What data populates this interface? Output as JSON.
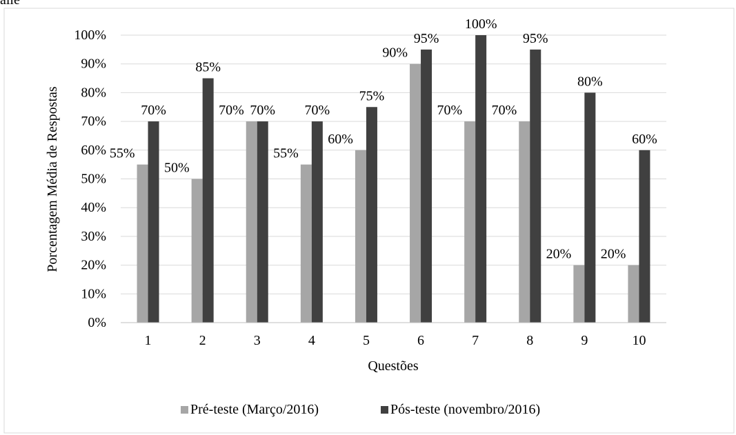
{
  "header_fragment": "aile",
  "chart_data": {
    "type": "bar",
    "title": "",
    "xlabel": "Questões",
    "ylabel": "Porcentagem Média de Respostas",
    "ylim": [
      0,
      100
    ],
    "yticks": [
      "0%",
      "10%",
      "20%",
      "30%",
      "40%",
      "50%",
      "60%",
      "70%",
      "80%",
      "90%",
      "100%"
    ],
    "categories": [
      "1",
      "2",
      "3",
      "4",
      "5",
      "6",
      "7",
      "8",
      "9",
      "10"
    ],
    "series": [
      {
        "name": "Pré-teste (Março/2016)",
        "color": "#a6a6a6",
        "values": [
          55,
          50,
          70,
          55,
          60,
          90,
          70,
          70,
          20,
          20
        ],
        "labels": [
          "55%",
          "50%",
          "70%",
          "55%",
          "60%",
          "90%",
          "70%",
          "70%",
          "20%",
          "20%"
        ]
      },
      {
        "name": "Pós-teste (novembro/2016)",
        "color": "#404040",
        "values": [
          70,
          85,
          70,
          70,
          75,
          95,
          100,
          95,
          80,
          60
        ],
        "labels": [
          "70%",
          "85%",
          "70%",
          "70%",
          "75%",
          "95%",
          "100%",
          "95%",
          "80%",
          "60%"
        ]
      }
    ],
    "grid": true,
    "legend_position": "bottom"
  }
}
